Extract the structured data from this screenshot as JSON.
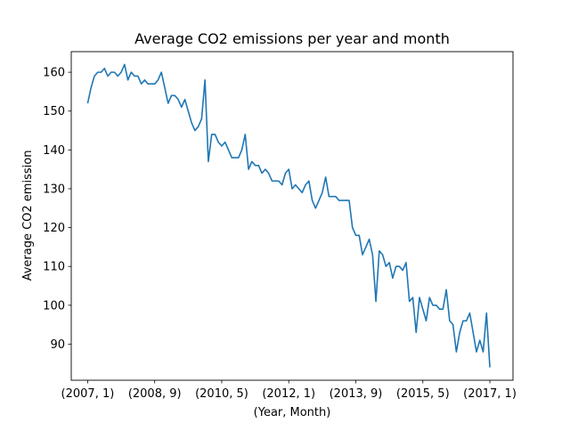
{
  "chart_data": {
    "type": "line",
    "title": "Average CO2 emissions per year and month",
    "xlabel": "(Year, Month)",
    "ylabel": "Average CO2 emission",
    "xlim": [
      -4.9,
      126.9
    ],
    "ylim": [
      80.7,
      165.3
    ],
    "x_tick_labels": [
      "(2007, 1)",
      "(2008, 9)",
      "(2010, 5)",
      "(2012, 1)",
      "(2013, 9)",
      "(2015, 5)",
      "(2017, 1)"
    ],
    "y_ticks": [
      90,
      100,
      110,
      120,
      130,
      140,
      150,
      160
    ],
    "grid": false,
    "legend": "none",
    "line_color": "#1f77b4",
    "series": [
      {
        "x_start": "(2007, 1)",
        "x_end": "(2017, 1)",
        "values": [
          152,
          156,
          159,
          160,
          160,
          161,
          159,
          160,
          160,
          159,
          160,
          162,
          158,
          160,
          159,
          159,
          157,
          158,
          157,
          157,
          157,
          158,
          160,
          156,
          152,
          154,
          154,
          153,
          151,
          153,
          150,
          147,
          145,
          146,
          148,
          158,
          137,
          144,
          144,
          142,
          141,
          142,
          140,
          138,
          138,
          138,
          140,
          144,
          135,
          137,
          136,
          136,
          134,
          135,
          134,
          132,
          132,
          132,
          131,
          134,
          135,
          130,
          131,
          130,
          129,
          131,
          132,
          127,
          125,
          127,
          129,
          133,
          128,
          128,
          128,
          127,
          127,
          127,
          127,
          120,
          118,
          118,
          113,
          115,
          117,
          113,
          101,
          114,
          113,
          110,
          111,
          107,
          110,
          110,
          109,
          111,
          101,
          102,
          93,
          102,
          99,
          96,
          102,
          100,
          100,
          99,
          99,
          104,
          96,
          95,
          88,
          93,
          96,
          96,
          98,
          93,
          88,
          91,
          88,
          98,
          84
        ]
      }
    ]
  }
}
